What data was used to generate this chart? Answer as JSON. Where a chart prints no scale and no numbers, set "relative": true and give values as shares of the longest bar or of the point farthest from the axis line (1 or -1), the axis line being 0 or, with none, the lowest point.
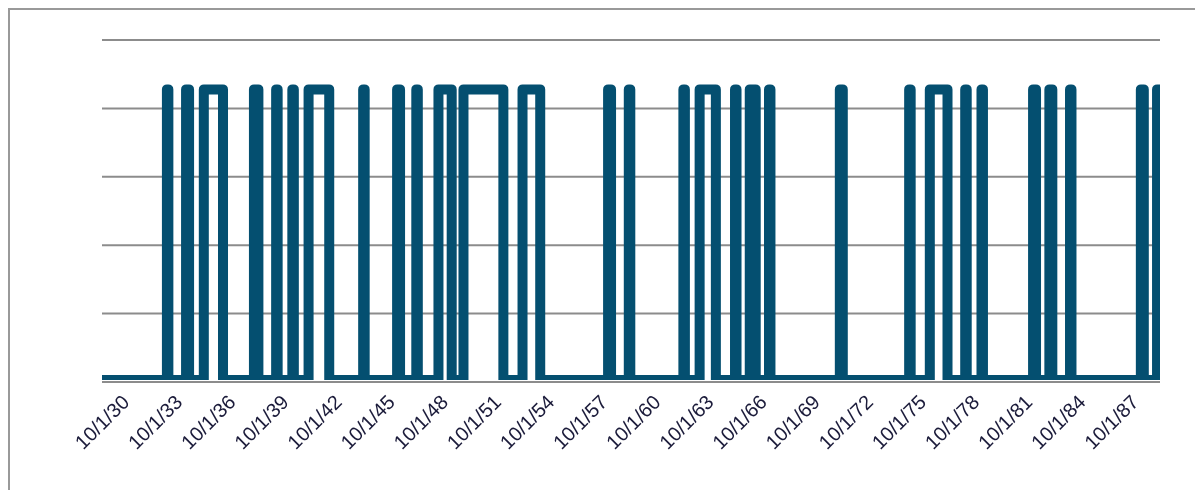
{
  "chart_data": {
    "type": "step",
    "relative": true,
    "grid": true,
    "line_style": "solid",
    "marker": "none",
    "x": [
      "1930-10",
      "1934-06",
      "1934-07",
      "1935-07",
      "1935-09",
      "1936-07",
      "1937-08",
      "1939-05",
      "1939-08",
      "1940-08",
      "1940-09",
      "1941-07",
      "1941-08",
      "1942-06",
      "1943-08",
      "1945-07",
      "1945-08",
      "1947-06",
      "1947-08",
      "1948-07",
      "1948-08",
      "1949-10",
      "1950-07",
      "1951-03",
      "1953-06",
      "1954-07",
      "1955-07",
      "1959-05",
      "1959-07",
      "1960-07",
      "1960-08",
      "1963-08",
      "1963-09",
      "1964-07",
      "1965-06",
      "1966-07",
      "1966-08",
      "1967-05",
      "1967-09",
      "1968-06",
      "1968-07",
      "1972-06",
      "1972-08",
      "1976-05",
      "1976-06",
      "1977-07",
      "1978-07",
      "1979-07",
      "1979-08",
      "1980-06",
      "1980-07",
      "1983-05",
      "1983-07",
      "1984-04",
      "1984-06",
      "1985-06",
      "1985-07",
      "1989-06",
      "1989-08",
      "1990-05",
      "1990-07"
    ],
    "series": [
      {
        "color": "#044f70",
        "values": [
          0,
          1,
          0,
          1,
          0,
          1,
          0,
          1,
          0,
          1,
          0,
          1,
          0,
          1,
          0,
          1,
          0,
          1,
          0,
          1,
          0,
          1,
          0,
          1,
          0,
          1,
          0,
          1,
          0,
          1,
          0,
          1,
          0,
          1,
          0,
          1,
          0,
          1,
          0,
          1,
          0,
          1,
          0,
          1,
          0,
          1,
          0,
          1,
          0,
          1,
          0,
          1,
          0,
          1,
          0,
          1,
          0,
          1,
          0,
          1,
          1
        ]
      }
    ],
    "xlim": [
      "1930-10",
      "1990-07"
    ],
    "xticks": [
      {
        "value": "1930-10",
        "label": "10/1/30"
      },
      {
        "value": "1933-10",
        "label": "10/1/33"
      },
      {
        "value": "1936-10",
        "label": "10/1/36"
      },
      {
        "value": "1939-10",
        "label": "10/1/39"
      },
      {
        "value": "1942-10",
        "label": "10/1/42"
      },
      {
        "value": "1945-10",
        "label": "10/1/45"
      },
      {
        "value": "1948-10",
        "label": "10/1/48"
      },
      {
        "value": "1951-10",
        "label": "10/1/51"
      },
      {
        "value": "1954-10",
        "label": "10/1/54"
      },
      {
        "value": "1957-10",
        "label": "10/1/57"
      },
      {
        "value": "1960-10",
        "label": "10/1/60"
      },
      {
        "value": "1963-10",
        "label": "10/1/63"
      },
      {
        "value": "1966-10",
        "label": "10/1/66"
      },
      {
        "value": "1969-10",
        "label": "10/1/69"
      },
      {
        "value": "1972-10",
        "label": "10/1/72"
      },
      {
        "value": "1975-10",
        "label": "10/1/75"
      },
      {
        "value": "1978-10",
        "label": "10/1/78"
      },
      {
        "value": "1981-10",
        "label": "10/1/81"
      },
      {
        "value": "1984-10",
        "label": "10/1/84"
      },
      {
        "value": "1987-10",
        "label": "10/1/87"
      }
    ]
  }
}
